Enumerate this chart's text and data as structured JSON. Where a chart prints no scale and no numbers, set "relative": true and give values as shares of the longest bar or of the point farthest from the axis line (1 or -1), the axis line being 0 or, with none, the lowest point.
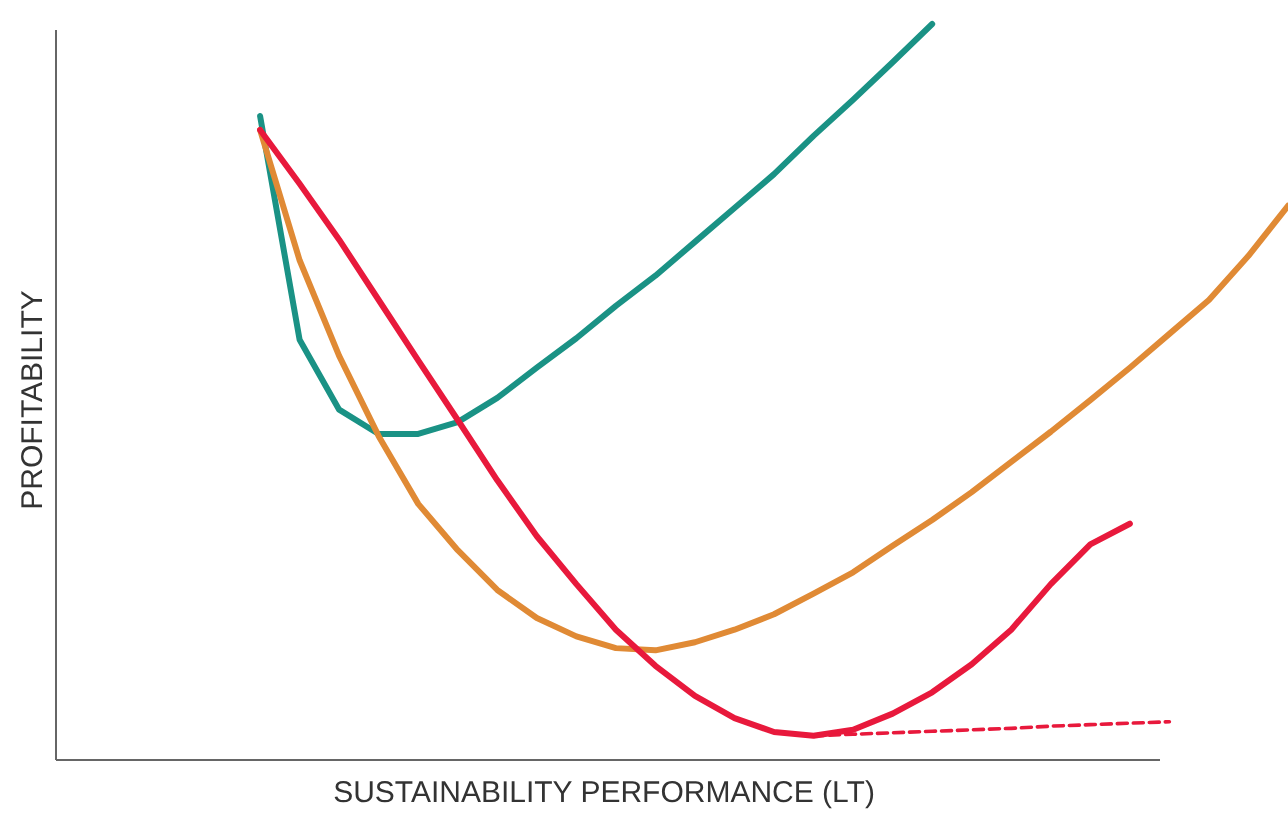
{
  "chart_data": {
    "type": "line",
    "relative": true,
    "xlabel": "SUSTAINABILITY PERFORMANCE (LT)",
    "ylabel": "PROFITABILITY",
    "grid": false,
    "legend": false,
    "marker": "none",
    "categories": [
      null,
      null,
      null,
      null,
      null,
      null,
      null,
      null,
      null,
      null,
      null,
      null,
      null,
      null,
      null,
      null,
      null,
      null,
      null,
      null,
      null,
      null,
      null,
      null,
      null,
      null,
      null,
      null,
      null,
      null,
      null,
      null
    ],
    "series": [
      {
        "color": "#1a9285",
        "line_style": "solid",
        "values": [
          null,
          null,
          null,
          null,
          null,
          0.875,
          0.571,
          0.476,
          0.443,
          0.443,
          0.459,
          0.492,
          0.533,
          0.573,
          0.617,
          0.658,
          0.704,
          0.75,
          0.796,
          0.848,
          0.897,
          0.948,
          1.0,
          null,
          null,
          null,
          null,
          null,
          null,
          null,
          null,
          null
        ]
      },
      {
        "color": "#e08a35",
        "line_style": "solid",
        "values": [
          null,
          null,
          null,
          null,
          null,
          0.856,
          0.679,
          0.549,
          0.44,
          0.348,
          0.285,
          0.231,
          0.193,
          0.168,
          0.152,
          0.149,
          0.16,
          0.177,
          0.198,
          0.226,
          0.255,
          0.291,
          0.326,
          0.364,
          0.405,
          0.446,
          0.489,
          0.533,
          0.579,
          0.625,
          0.685,
          0.753
        ]
      },
      {
        "color": "#e8193c",
        "line_style": "solid",
        "values": [
          null,
          null,
          null,
          null,
          null,
          0.856,
          0.783,
          0.707,
          0.625,
          0.543,
          0.462,
          0.38,
          0.304,
          0.239,
          0.177,
          0.128,
          0.087,
          0.057,
          0.038,
          0.033,
          0.041,
          0.063,
          0.092,
          0.13,
          0.177,
          0.239,
          0.293,
          0.321,
          null,
          null,
          null,
          null
        ]
      },
      {
        "color": "#e8193c",
        "line_style": "dashed",
        "values": [
          null,
          null,
          null,
          null,
          null,
          null,
          null,
          null,
          null,
          null,
          null,
          null,
          null,
          null,
          null,
          null,
          null,
          null,
          null,
          0.033,
          0.035,
          0.037,
          0.039,
          0.041,
          0.043,
          0.046,
          0.048,
          0.05,
          0.052,
          null,
          null,
          null
        ]
      }
    ]
  }
}
